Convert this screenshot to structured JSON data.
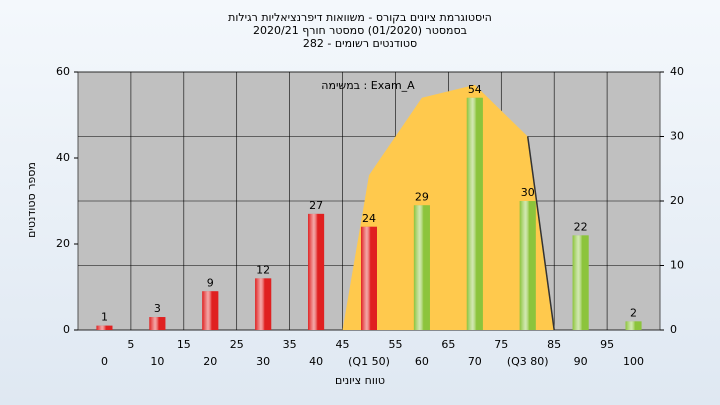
{
  "chart_data": {
    "type": "bar",
    "title": [
      "היסטוגרמת ציונים בקורס - משוואות דיפרנציאליות רגילות",
      "בסמסטר  (01/2020)  סמסטר חורף 2020/21",
      "סטודנטים רשומים - 282"
    ],
    "annotation": "במשימה : Exam_A",
    "y_label": "מספר סטודנטים",
    "x_label": "טווח ציונים",
    "x": [
      0,
      10,
      20,
      30,
      40,
      50,
      60,
      70,
      80,
      90,
      100
    ],
    "series": [
      {
        "values": [
          1,
          3,
          9,
          12,
          27,
          24,
          29,
          54,
          30,
          22,
          2
        ],
        "colors": [
          "#e02020",
          "#e02020",
          "#e02020",
          "#e02020",
          "#e02020",
          "#e02020",
          "#8cc43c",
          "#8cc43c",
          "#8cc43c",
          "#8cc43c",
          "#8cc43c"
        ]
      }
    ],
    "area": {
      "x": [
        45,
        50,
        60,
        70,
        80,
        85
      ],
      "values": [
        0,
        24,
        36,
        38,
        30,
        0
      ],
      "axis": "y2",
      "color": "#ffc94d"
    },
    "xlim": [
      -5,
      105
    ],
    "xticks": [
      0,
      5,
      10,
      15,
      20,
      25,
      30,
      35,
      40,
      45,
      {
        "value": 50,
        "label": "(Q1 50)"
      },
      55,
      60,
      65,
      70,
      75,
      {
        "value": 80,
        "label": "(Q3 80)"
      },
      85,
      90,
      95,
      100
    ],
    "ylim": [
      0,
      60
    ],
    "yticks": [
      0,
      20,
      40,
      60
    ],
    "y2lim": [
      0,
      40
    ],
    "y2ticks": [
      0,
      10,
      20,
      30,
      40
    ],
    "grid": true
  }
}
